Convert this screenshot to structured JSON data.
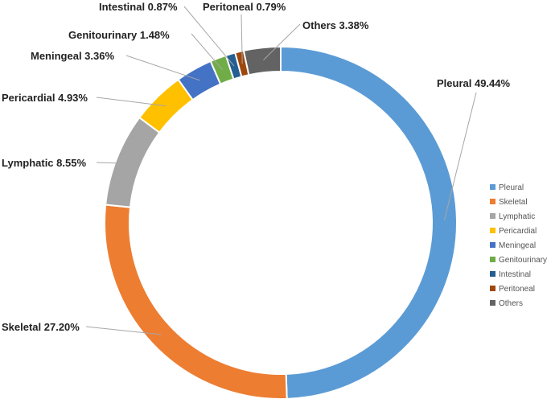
{
  "chart_data": {
    "type": "pie",
    "variant": "donut",
    "title": "",
    "legend_position": "right",
    "slices": [
      {
        "name": "Pleural",
        "value": 49.44,
        "label": "Pleural 49.44%",
        "color": "#5b9bd5"
      },
      {
        "name": "Skeletal",
        "value": 27.2,
        "label": "Skeletal 27.20%",
        "color": "#ed7d31"
      },
      {
        "name": "Lymphatic",
        "value": 8.55,
        "label": "Lymphatic 8.55%",
        "color": "#a5a5a5"
      },
      {
        "name": "Pericardial",
        "value": 4.93,
        "label": "Pericardial 4.93%",
        "color": "#ffc000"
      },
      {
        "name": "Meningeal",
        "value": 3.36,
        "label": "Meningeal 3.36%",
        "color": "#4472c4"
      },
      {
        "name": "Genitourinary",
        "value": 1.48,
        "label": "Genitourinary 1.48%",
        "color": "#70ad47"
      },
      {
        "name": "Intestinal",
        "value": 0.87,
        "label": "Intestinal 0.87%",
        "color": "#255e91"
      },
      {
        "name": "Peritoneal",
        "value": 0.79,
        "label": "Peritoneal 0.79%",
        "color": "#9e480e"
      },
      {
        "name": "Others",
        "value": 3.38,
        "label": "Others 3.38%",
        "color": "#636363"
      }
    ]
  }
}
